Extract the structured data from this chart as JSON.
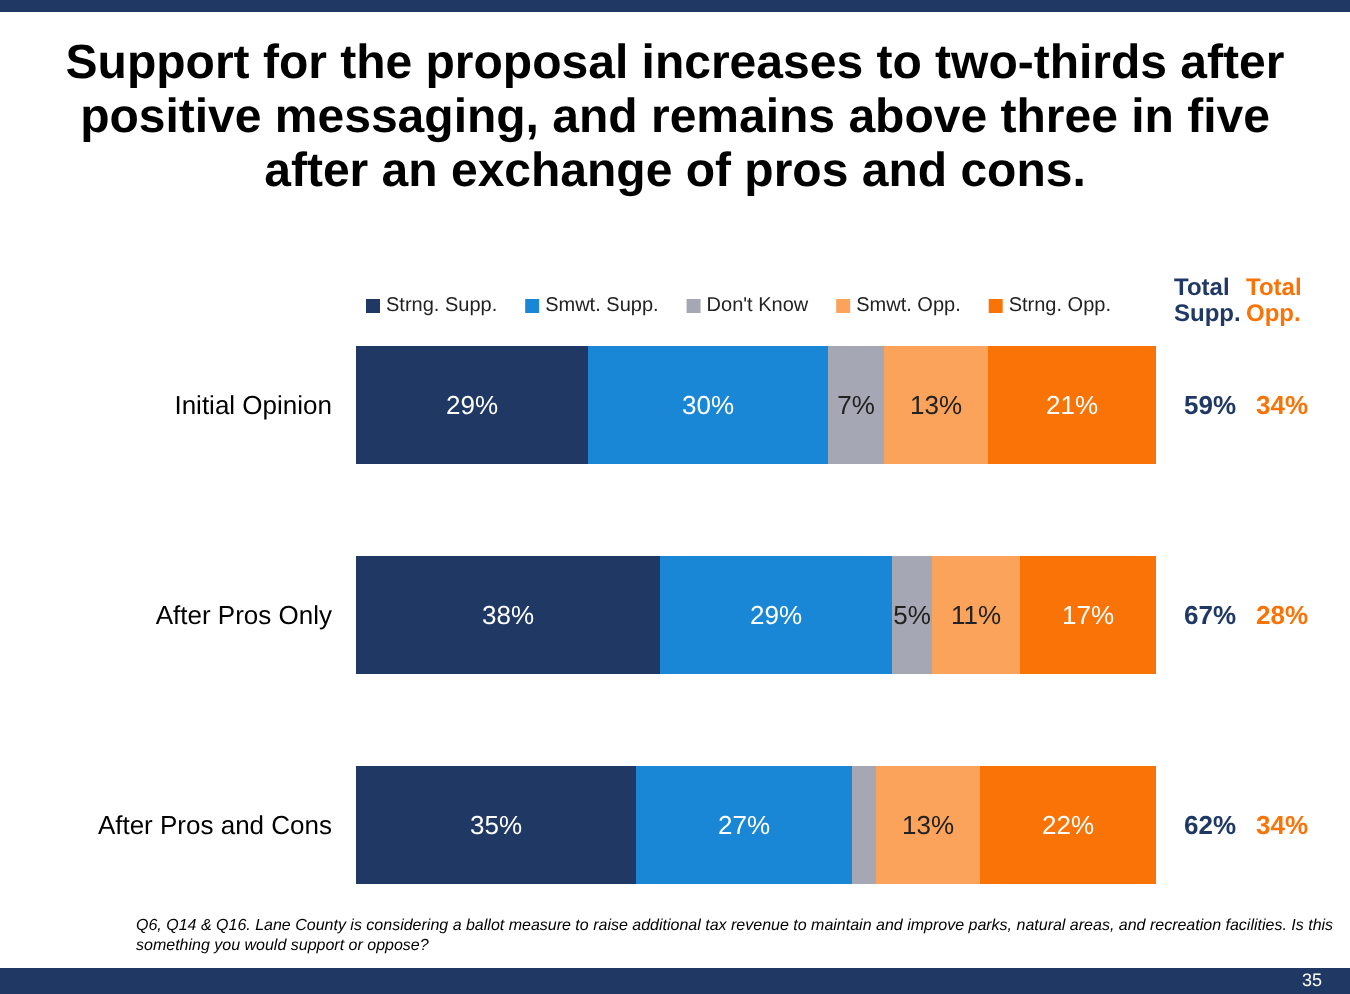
{
  "chart_data": {
    "type": "bar",
    "orientation": "horizontal",
    "stacked": true,
    "title": "Support for the proposal increases to two-thirds after positive messaging, and remains above three in five after an exchange of pros and cons.",
    "categories": [
      "Initial Opinion",
      "After Pros Only",
      "After Pros and Cons"
    ],
    "series": [
      {
        "name": "Strng. Supp.",
        "color": "#1f3864",
        "values": [
          29,
          38,
          35
        ],
        "value_labels": [
          "29%",
          "38%",
          "35%"
        ]
      },
      {
        "name": "Smwt. Supp.",
        "color": "#1a87d6",
        "values": [
          30,
          29,
          27
        ],
        "value_labels": [
          "30%",
          "29%",
          "27%"
        ]
      },
      {
        "name": "Don't Know",
        "color": "#a5a8b4",
        "values": [
          7,
          5,
          3
        ],
        "value_labels": [
          "7%",
          "5%",
          null
        ]
      },
      {
        "name": "Smwt. Opp.",
        "color": "#fba35a",
        "values": [
          13,
          11,
          13
        ],
        "value_labels": [
          "13%",
          "11%",
          "13%"
        ]
      },
      {
        "name": "Strng. Opp.",
        "color": "#f97306",
        "values": [
          21,
          17,
          22
        ],
        "value_labels": [
          "21%",
          "17%",
          "22%"
        ]
      }
    ],
    "legend": "top",
    "annotations": [
      "Total Supp.",
      "Total Opp.",
      "59%",
      "34%",
      "67%",
      "28%",
      "62%",
      "34%",
      "Q6, Q14 & Q16. Lane County is considering a ballot measure to raise additional tax revenue to maintain and improve parks, natural areas, and recreation facilities. Is this something you would support or oppose?",
      "35"
    ]
  }
}
